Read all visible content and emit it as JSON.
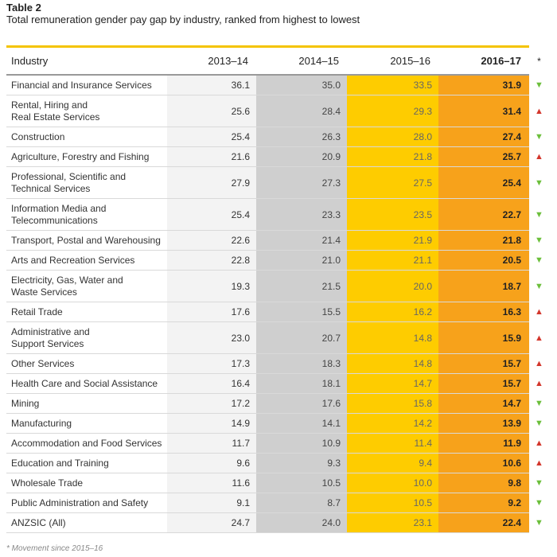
{
  "title": "Table 2",
  "subtitle": "Total remuneration gender pay gap by industry, ranked from highest to lowest",
  "headers": [
    "Industry",
    "2013–14",
    "2014–15",
    "2015–16",
    "2016–17",
    "*"
  ],
  "rows": [
    {
      "industry": "Financial and Insurance Services",
      "v": [
        "36.1",
        "35.0",
        "33.5",
        "31.9"
      ],
      "trend": "down",
      "arrow": "▼"
    },
    {
      "industry": "Rental, Hiring and\nReal Estate Services",
      "v": [
        "25.6",
        "28.4",
        "29.3",
        "31.4"
      ],
      "trend": "up",
      "arrow": "▲"
    },
    {
      "industry": "Construction",
      "v": [
        "25.4",
        "26.3",
        "28.0",
        "27.4"
      ],
      "trend": "down",
      "arrow": "▼"
    },
    {
      "industry": "Agriculture, Forestry and Fishing",
      "v": [
        "21.6",
        "20.9",
        "21.8",
        "25.7"
      ],
      "trend": "up",
      "arrow": "▲"
    },
    {
      "industry": "Professional, Scientific and\nTechnical Services",
      "v": [
        "27.9",
        "27.3",
        "27.5",
        "25.4"
      ],
      "trend": "down",
      "arrow": "▼"
    },
    {
      "industry": "Information Media and\nTelecommunications",
      "v": [
        "25.4",
        "23.3",
        "23.5",
        "22.7"
      ],
      "trend": "down",
      "arrow": "▼"
    },
    {
      "industry": "Transport, Postal and Warehousing",
      "v": [
        "22.6",
        "21.4",
        "21.9",
        "21.8"
      ],
      "trend": "down",
      "arrow": "▼"
    },
    {
      "industry": "Arts and Recreation Services",
      "v": [
        "22.8",
        "21.0",
        "21.1",
        "20.5"
      ],
      "trend": "down",
      "arrow": "▼"
    },
    {
      "industry": "Electricity, Gas, Water and\nWaste Services",
      "v": [
        "19.3",
        "21.5",
        "20.0",
        "18.7"
      ],
      "trend": "down",
      "arrow": "▼"
    },
    {
      "industry": "Retail Trade",
      "v": [
        "17.6",
        "15.5",
        "16.2",
        "16.3"
      ],
      "trend": "up",
      "arrow": "▲"
    },
    {
      "industry": "Administrative and\nSupport Services",
      "v": [
        "23.0",
        "20.7",
        "14.8",
        "15.9"
      ],
      "trend": "up",
      "arrow": "▲"
    },
    {
      "industry": "Other Services",
      "v": [
        "17.3",
        "18.3",
        "14.8",
        "15.7"
      ],
      "trend": "up",
      "arrow": "▲"
    },
    {
      "industry": "Health Care and Social Assistance",
      "v": [
        "16.4",
        "18.1",
        "14.7",
        "15.7"
      ],
      "trend": "up",
      "arrow": "▲"
    },
    {
      "industry": "Mining",
      "v": [
        "17.2",
        "17.6",
        "15.8",
        "14.7"
      ],
      "trend": "down",
      "arrow": "▼"
    },
    {
      "industry": "Manufacturing",
      "v": [
        "14.9",
        "14.1",
        "14.2",
        "13.9"
      ],
      "trend": "down",
      "arrow": "▼"
    },
    {
      "industry": "Accommodation and Food Services",
      "v": [
        "11.7",
        "10.9",
        "11.4",
        "11.9"
      ],
      "trend": "up",
      "arrow": "▲"
    },
    {
      "industry": "Education and Training",
      "v": [
        "9.6",
        "9.3",
        "9.4",
        "10.6"
      ],
      "trend": "up",
      "arrow": "▲"
    },
    {
      "industry": "Wholesale Trade",
      "v": [
        "11.6",
        "10.5",
        "10.0",
        "9.8"
      ],
      "trend": "down",
      "arrow": "▼"
    },
    {
      "industry": "Public Administration and Safety",
      "v": [
        "9.1",
        "8.7",
        "10.5",
        "9.2"
      ],
      "trend": "down",
      "arrow": "▼"
    },
    {
      "industry": "ANZSIC (All)",
      "v": [
        "24.7",
        "24.0",
        "23.1",
        "22.4"
      ],
      "trend": "down",
      "arrow": "▼"
    }
  ],
  "footnote": "* Movement since 2015–16",
  "colors": {
    "accent_rule": "#f4c400",
    "col_2013_14": "#f3f3f3",
    "col_2014_15": "#cfcfcf",
    "col_2015_16": "#fecc00",
    "col_2016_17": "#f7a21b",
    "arrow_up": "#d3362c",
    "arrow_down": "#6cbf3b"
  },
  "icons": {
    "up": "triangle-up-icon",
    "down": "triangle-down-icon"
  }
}
